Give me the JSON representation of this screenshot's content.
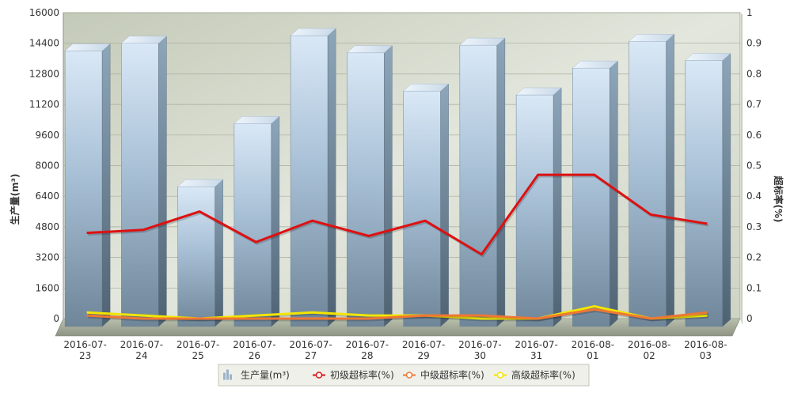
{
  "chart_data": {
    "type": "bar",
    "categories": [
      [
        "2016-07-",
        "23"
      ],
      [
        "2016-07-",
        "24"
      ],
      [
        "2016-07-",
        "25"
      ],
      [
        "2016-07-",
        "26"
      ],
      [
        "2016-07-",
        "27"
      ],
      [
        "2016-07-",
        "28"
      ],
      [
        "2016-07-",
        "29"
      ],
      [
        "2016-07-",
        "30"
      ],
      [
        "2016-07-",
        "31"
      ],
      [
        "2016-08-",
        "01"
      ],
      [
        "2016-08-",
        "02"
      ],
      [
        "2016-08-",
        "03"
      ]
    ],
    "ylabel": "生产量(m³)",
    "y2label": "超标率(%)",
    "ylim": [
      0,
      16000
    ],
    "y2lim": [
      0,
      1
    ],
    "yticks": [
      "0",
      "1600",
      "3200",
      "4800",
      "6400",
      "8000",
      "9600",
      "11200",
      "12800",
      "14400",
      "16000"
    ],
    "y2ticks": [
      "0",
      "0.1",
      "0.2",
      "0.3",
      "0.4",
      "0.5",
      "0.6",
      "0.7",
      "0.8",
      "0.9",
      "1"
    ],
    "grid": true,
    "legend_position": "bottom-center",
    "series": [
      {
        "name": "生产量(m³)",
        "type": "bar",
        "axis": "left",
        "color": "#a9c3dc",
        "values": [
          14000,
          14400,
          6900,
          10200,
          14800,
          13900,
          11900,
          14300,
          11700,
          13100,
          14500,
          13500
        ]
      },
      {
        "name": "初级超标率(%)",
        "type": "line",
        "axis": "right",
        "color": "#dd1111",
        "values": [
          0.28,
          0.29,
          0.35,
          0.25,
          0.32,
          0.27,
          0.32,
          0.21,
          0.47,
          0.47,
          0.34,
          0.31
        ]
      },
      {
        "name": "中级超标率(%)",
        "type": "line",
        "axis": "right",
        "color": "#ee7733",
        "values": [
          0.01,
          0.0,
          0.0,
          0.0,
          0.0,
          0.0,
          0.01,
          0.01,
          0.0,
          0.03,
          0.0,
          0.02
        ]
      },
      {
        "name": "高级超标率(%)",
        "type": "line",
        "axis": "right",
        "color": "#f2e600",
        "values": [
          0.02,
          0.01,
          0.0,
          0.01,
          0.02,
          0.01,
          0.01,
          0.0,
          0.0,
          0.04,
          0.0,
          0.01
        ]
      }
    ]
  }
}
